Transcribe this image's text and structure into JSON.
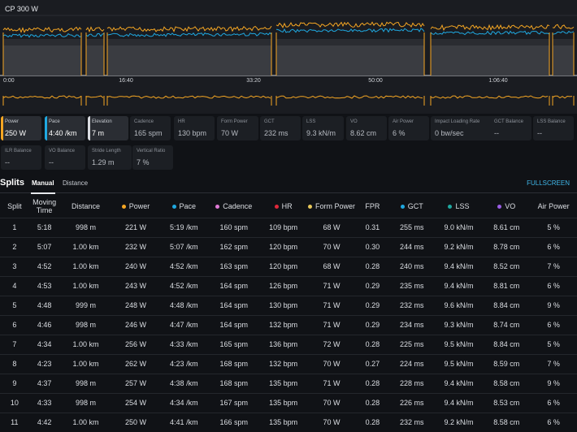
{
  "chart": {
    "cp_label": "CP 300 W",
    "x_ticks": [
      "0:00",
      "16:40",
      "33:20",
      "50:00",
      "1:06:40"
    ],
    "series": [
      {
        "name": "Power",
        "color": "#f5a623"
      },
      {
        "name": "Pace",
        "color": "#1fa8e0"
      },
      {
        "name": "Elevation",
        "color": "#8a8d92"
      }
    ]
  },
  "metrics": [
    {
      "label": "Power",
      "value": "250 W",
      "color": "#f5a623",
      "selected": true
    },
    {
      "label": "Pace",
      "value": "4:40 /km",
      "color": "#1fa8e0",
      "selected": true
    },
    {
      "label": "Elevation",
      "value": "7 m",
      "color": "#d9dbe0",
      "selected": true
    },
    {
      "label": "Cadence",
      "value": "165 spm"
    },
    {
      "label": "HR",
      "value": "130 bpm"
    },
    {
      "label": "Form Power",
      "value": "70 W"
    },
    {
      "label": "GCT",
      "value": "232 ms"
    },
    {
      "label": "LSS",
      "value": "9.3 kN/m"
    },
    {
      "label": "VO",
      "value": "8.62 cm"
    },
    {
      "label": "Air Power",
      "value": "6 %"
    },
    {
      "label": "Impact Loading Rate",
      "value": "0 bw/sec"
    },
    {
      "label": "GCT Balance",
      "value": "--"
    },
    {
      "label": "LSS Balance",
      "value": "--"
    },
    {
      "label": "ILR Balance",
      "value": "--"
    },
    {
      "label": "VO Balance",
      "value": "--"
    },
    {
      "label": "Stride Length",
      "value": "1.29 m"
    },
    {
      "label": "Vertical Ratio",
      "value": "7 %"
    }
  ],
  "splits": {
    "title": "Splits",
    "tabs": [
      "Manual",
      "Distance"
    ],
    "fullscreen": "FULLSCREEN",
    "columns": [
      {
        "label": "Split"
      },
      {
        "label": "Moving Time"
      },
      {
        "label": "Distance"
      },
      {
        "label": "Power",
        "dot": "#f5a623"
      },
      {
        "label": "Pace",
        "dot": "#1fa8e0"
      },
      {
        "label": "Cadence",
        "dot": "#e07ad6"
      },
      {
        "label": "HR",
        "dot": "#e0283a"
      },
      {
        "label": "Form Power",
        "dot": "#e8c85a"
      },
      {
        "label": "FPR"
      },
      {
        "label": "GCT",
        "dot": "#1fa8e0"
      },
      {
        "label": "LSS",
        "dot": "#1fa8a0"
      },
      {
        "label": "VO",
        "dot": "#9b5de5"
      },
      {
        "label": "Air Power"
      }
    ],
    "rows": [
      [
        "1",
        "5:18",
        "998 m",
        "221 W",
        "5:19 /km",
        "160 spm",
        "109 bpm",
        "68 W",
        "0.31",
        "255 ms",
        "9.0 kN/m",
        "8.61 cm",
        "5 %"
      ],
      [
        "2",
        "5:07",
        "1.00 km",
        "232 W",
        "5:07 /km",
        "162 spm",
        "120 bpm",
        "70 W",
        "0.30",
        "244 ms",
        "9.2 kN/m",
        "8.78 cm",
        "6 %"
      ],
      [
        "3",
        "4:52",
        "1.00 km",
        "240 W",
        "4:52 /km",
        "163 spm",
        "120 bpm",
        "68 W",
        "0.28",
        "240 ms",
        "9.4 kN/m",
        "8.52 cm",
        "7 %"
      ],
      [
        "4",
        "4:53",
        "1.00 km",
        "243 W",
        "4:52 /km",
        "164 spm",
        "126 bpm",
        "71 W",
        "0.29",
        "235 ms",
        "9.4 kN/m",
        "8.81 cm",
        "6 %"
      ],
      [
        "5",
        "4:48",
        "999 m",
        "248 W",
        "4:48 /km",
        "164 spm",
        "130 bpm",
        "71 W",
        "0.29",
        "232 ms",
        "9.6 kN/m",
        "8.84 cm",
        "9 %"
      ],
      [
        "6",
        "4:46",
        "998 m",
        "246 W",
        "4:47 /km",
        "164 spm",
        "132 bpm",
        "71 W",
        "0.29",
        "234 ms",
        "9.3 kN/m",
        "8.74 cm",
        "6 %"
      ],
      [
        "7",
        "4:34",
        "1.00 km",
        "256 W",
        "4:33 /km",
        "165 spm",
        "136 bpm",
        "72 W",
        "0.28",
        "225 ms",
        "9.5 kN/m",
        "8.84 cm",
        "5 %"
      ],
      [
        "8",
        "4:23",
        "1.00 km",
        "262 W",
        "4:23 /km",
        "168 spm",
        "132 bpm",
        "70 W",
        "0.27",
        "224 ms",
        "9.5 kN/m",
        "8.59 cm",
        "7 %"
      ],
      [
        "9",
        "4:37",
        "998 m",
        "257 W",
        "4:38 /km",
        "168 spm",
        "135 bpm",
        "71 W",
        "0.28",
        "228 ms",
        "9.4 kN/m",
        "8.58 cm",
        "9 %"
      ],
      [
        "10",
        "4:33",
        "998 m",
        "254 W",
        "4:34 /km",
        "167 spm",
        "135 bpm",
        "70 W",
        "0.28",
        "226 ms",
        "9.4 kN/m",
        "8.53 cm",
        "6 %"
      ],
      [
        "11",
        "4:42",
        "1.00 km",
        "250 W",
        "4:41 /km",
        "166 spm",
        "135 bpm",
        "70 W",
        "0.28",
        "232 ms",
        "9.2 kN/m",
        "8.58 cm",
        "6 %"
      ]
    ]
  }
}
